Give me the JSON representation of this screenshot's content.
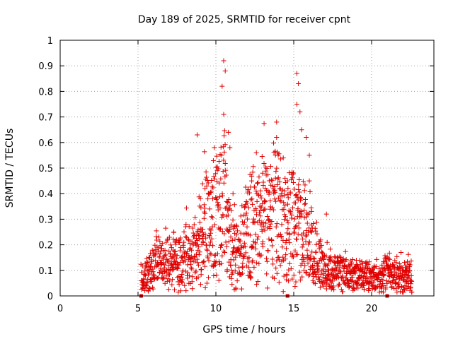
{
  "chart_data": {
    "type": "scatter",
    "title": "Day 189 of 2025, SRMTID for receiver cpnt",
    "xlabel": "GPS time / hours",
    "ylabel": "SRMTID / TECUs",
    "xlim": [
      0,
      24
    ],
    "ylim": [
      0,
      1
    ],
    "xticks": [
      0,
      5,
      10,
      15,
      20
    ],
    "xtick_labels": [
      "0",
      "5",
      "10",
      "15",
      "20"
    ],
    "yticks": [
      0,
      0.1,
      0.2,
      0.3,
      0.4,
      0.5,
      0.6,
      0.7,
      0.8,
      0.9,
      1
    ],
    "ytick_labels": [
      "0",
      "0.1",
      "0.2",
      "0.3",
      "0.4",
      "0.5",
      "0.6",
      "0.7",
      "0.8",
      "0.9",
      "1"
    ],
    "grid": true,
    "marker": "+",
    "color": "#e00000",
    "series": [
      {
        "name": "SRMTID",
        "profile": [
          {
            "x": 5.2,
            "y": 0.06
          },
          {
            "x": 5.5,
            "y": 0.08
          },
          {
            "x": 6.0,
            "y": 0.12
          },
          {
            "x": 6.5,
            "y": 0.13
          },
          {
            "x": 7.0,
            "y": 0.12
          },
          {
            "x": 7.5,
            "y": 0.14
          },
          {
            "x": 8.0,
            "y": 0.15
          },
          {
            "x": 8.5,
            "y": 0.15
          },
          {
            "x": 9.0,
            "y": 0.22
          },
          {
            "x": 9.5,
            "y": 0.28
          },
          {
            "x": 10.0,
            "y": 0.3
          },
          {
            "x": 10.5,
            "y": 0.34
          },
          {
            "x": 11.0,
            "y": 0.2
          },
          {
            "x": 11.5,
            "y": 0.14
          },
          {
            "x": 12.0,
            "y": 0.26
          },
          {
            "x": 12.5,
            "y": 0.28
          },
          {
            "x": 13.0,
            "y": 0.3
          },
          {
            "x": 13.5,
            "y": 0.32
          },
          {
            "x": 14.0,
            "y": 0.33
          },
          {
            "x": 14.5,
            "y": 0.24
          },
          {
            "x": 15.0,
            "y": 0.27
          },
          {
            "x": 15.5,
            "y": 0.25
          },
          {
            "x": 16.0,
            "y": 0.22
          },
          {
            "x": 16.5,
            "y": 0.14
          },
          {
            "x": 17.0,
            "y": 0.1
          },
          {
            "x": 17.5,
            "y": 0.09
          },
          {
            "x": 18.0,
            "y": 0.09
          },
          {
            "x": 18.5,
            "y": 0.07
          },
          {
            "x": 19.0,
            "y": 0.08
          },
          {
            "x": 19.5,
            "y": 0.08
          },
          {
            "x": 20.0,
            "y": 0.07
          },
          {
            "x": 20.5,
            "y": 0.06
          },
          {
            "x": 21.0,
            "y": 0.09
          },
          {
            "x": 21.5,
            "y": 0.08
          },
          {
            "x": 22.0,
            "y": 0.07
          },
          {
            "x": 22.6,
            "y": 0.08
          }
        ],
        "peaks": [
          {
            "x": 8.8,
            "y": 0.63
          },
          {
            "x": 10.5,
            "y": 0.92
          },
          {
            "x": 10.6,
            "y": 0.88
          },
          {
            "x": 10.4,
            "y": 0.82
          },
          {
            "x": 10.5,
            "y": 0.71
          },
          {
            "x": 10.8,
            "y": 0.64
          },
          {
            "x": 10.9,
            "y": 0.58
          },
          {
            "x": 9.9,
            "y": 0.58
          },
          {
            "x": 12.6,
            "y": 0.56
          },
          {
            "x": 13.9,
            "y": 0.68
          },
          {
            "x": 13.9,
            "y": 0.62
          },
          {
            "x": 14.0,
            "y": 0.55
          },
          {
            "x": 15.2,
            "y": 0.87
          },
          {
            "x": 15.3,
            "y": 0.83
          },
          {
            "x": 15.2,
            "y": 0.75
          },
          {
            "x": 15.4,
            "y": 0.72
          },
          {
            "x": 15.5,
            "y": 0.65
          },
          {
            "x": 15.8,
            "y": 0.62
          },
          {
            "x": 16.0,
            "y": 0.55
          },
          {
            "x": 16.0,
            "y": 0.45
          },
          {
            "x": 17.1,
            "y": 0.32
          },
          {
            "x": 7.3,
            "y": 0.25
          },
          {
            "x": 12.3,
            "y": 0.45
          },
          {
            "x": 13.0,
            "y": 0.48
          },
          {
            "x": 14.6,
            "y": 0.45
          },
          {
            "x": 9.3,
            "y": 0.42
          },
          {
            "x": 11.1,
            "y": 0.4
          }
        ],
        "floor_markers": [
          5.2,
          14.6,
          21.0
        ]
      }
    ]
  }
}
